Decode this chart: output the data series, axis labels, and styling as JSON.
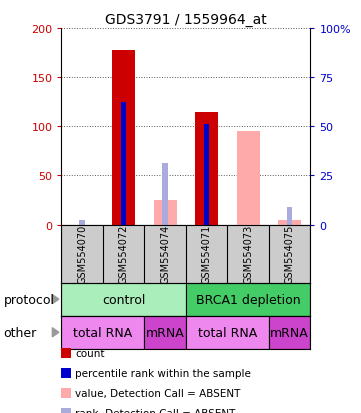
{
  "title": "GDS3791 / 1559964_at",
  "samples": [
    "GSM554070",
    "GSM554072",
    "GSM554074",
    "GSM554071",
    "GSM554073",
    "GSM554075"
  ],
  "count_values": [
    null,
    178,
    null,
    115,
    null,
    null
  ],
  "count_absent_values": [
    null,
    null,
    25,
    null,
    95,
    5
  ],
  "percentile_values": [
    null,
    125,
    null,
    102,
    null,
    null
  ],
  "percentile_absent_values": [
    5,
    null,
    63,
    null,
    null,
    18
  ],
  "ylim_left": [
    0,
    200
  ],
  "ylim_right": [
    0,
    100
  ],
  "yticks_left": [
    0,
    50,
    100,
    150,
    200
  ],
  "yticks_right": [
    0,
    25,
    50,
    75,
    100
  ],
  "ytick_labels_right": [
    "0",
    "25",
    "50",
    "75",
    "100%"
  ],
  "color_count": "#cc0000",
  "color_percentile": "#0000cc",
  "color_count_absent": "#ffaaaa",
  "color_percentile_absent": "#aaaadd",
  "protocol_groups": [
    {
      "label": "control",
      "start": 0,
      "end": 3,
      "color": "#aaeebb"
    },
    {
      "label": "BRCA1 depletion",
      "start": 3,
      "end": 6,
      "color": "#44cc66"
    }
  ],
  "other_groups": [
    {
      "label": "total RNA",
      "start": 0,
      "end": 2,
      "color": "#ee88ee"
    },
    {
      "label": "mRNA",
      "start": 2,
      "end": 3,
      "color": "#cc44cc"
    },
    {
      "label": "total RNA",
      "start": 3,
      "end": 5,
      "color": "#ee88ee"
    },
    {
      "label": "mRNA",
      "start": 5,
      "end": 6,
      "color": "#cc44cc"
    }
  ],
  "legend_items": [
    {
      "label": "count",
      "color": "#cc0000"
    },
    {
      "label": "percentile rank within the sample",
      "color": "#0000cc"
    },
    {
      "label": "value, Detection Call = ABSENT",
      "color": "#ffaaaa"
    },
    {
      "label": "rank, Detection Call = ABSENT",
      "color": "#aaaadd"
    }
  ],
  "bar_width": 0.55,
  "percentile_bar_width": 0.13,
  "bg_color": "#ffffff",
  "sample_box_color": "#cccccc",
  "grid_color": "#555555",
  "title_fontsize": 10,
  "axis_fontsize": 8,
  "tick_fontsize": 8,
  "sample_fontsize": 7,
  "legend_fontsize": 7.5,
  "label_fontsize": 9
}
